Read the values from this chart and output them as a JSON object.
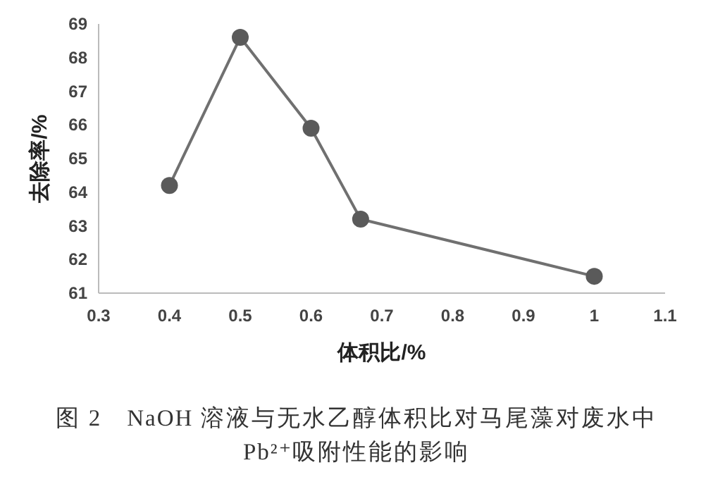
{
  "chart_data": {
    "type": "line",
    "title": "图 2　NaOH 溶液与无水乙醇体积比对马尾藻对废水中 Pb²⁺吸附性能的影响",
    "xlabel": "体积比/%",
    "ylabel": "去除率/%",
    "x": [
      0.4,
      0.5,
      0.6,
      0.67,
      1
    ],
    "series": [
      {
        "color": "#707070",
        "values": [
          64.2,
          68.6,
          65.9,
          63.2,
          61.5
        ]
      }
    ],
    "xlim": [
      0.3,
      1.1
    ],
    "xticks": [
      0.3,
      0.4,
      0.5,
      0.6,
      0.7,
      0.8,
      0.9,
      1,
      1.1
    ],
    "ylim": [
      61,
      69
    ],
    "yticks": [
      61,
      62,
      63,
      64,
      65,
      66,
      67,
      68,
      69
    ],
    "marker": "circle",
    "line_style": "solid"
  }
}
